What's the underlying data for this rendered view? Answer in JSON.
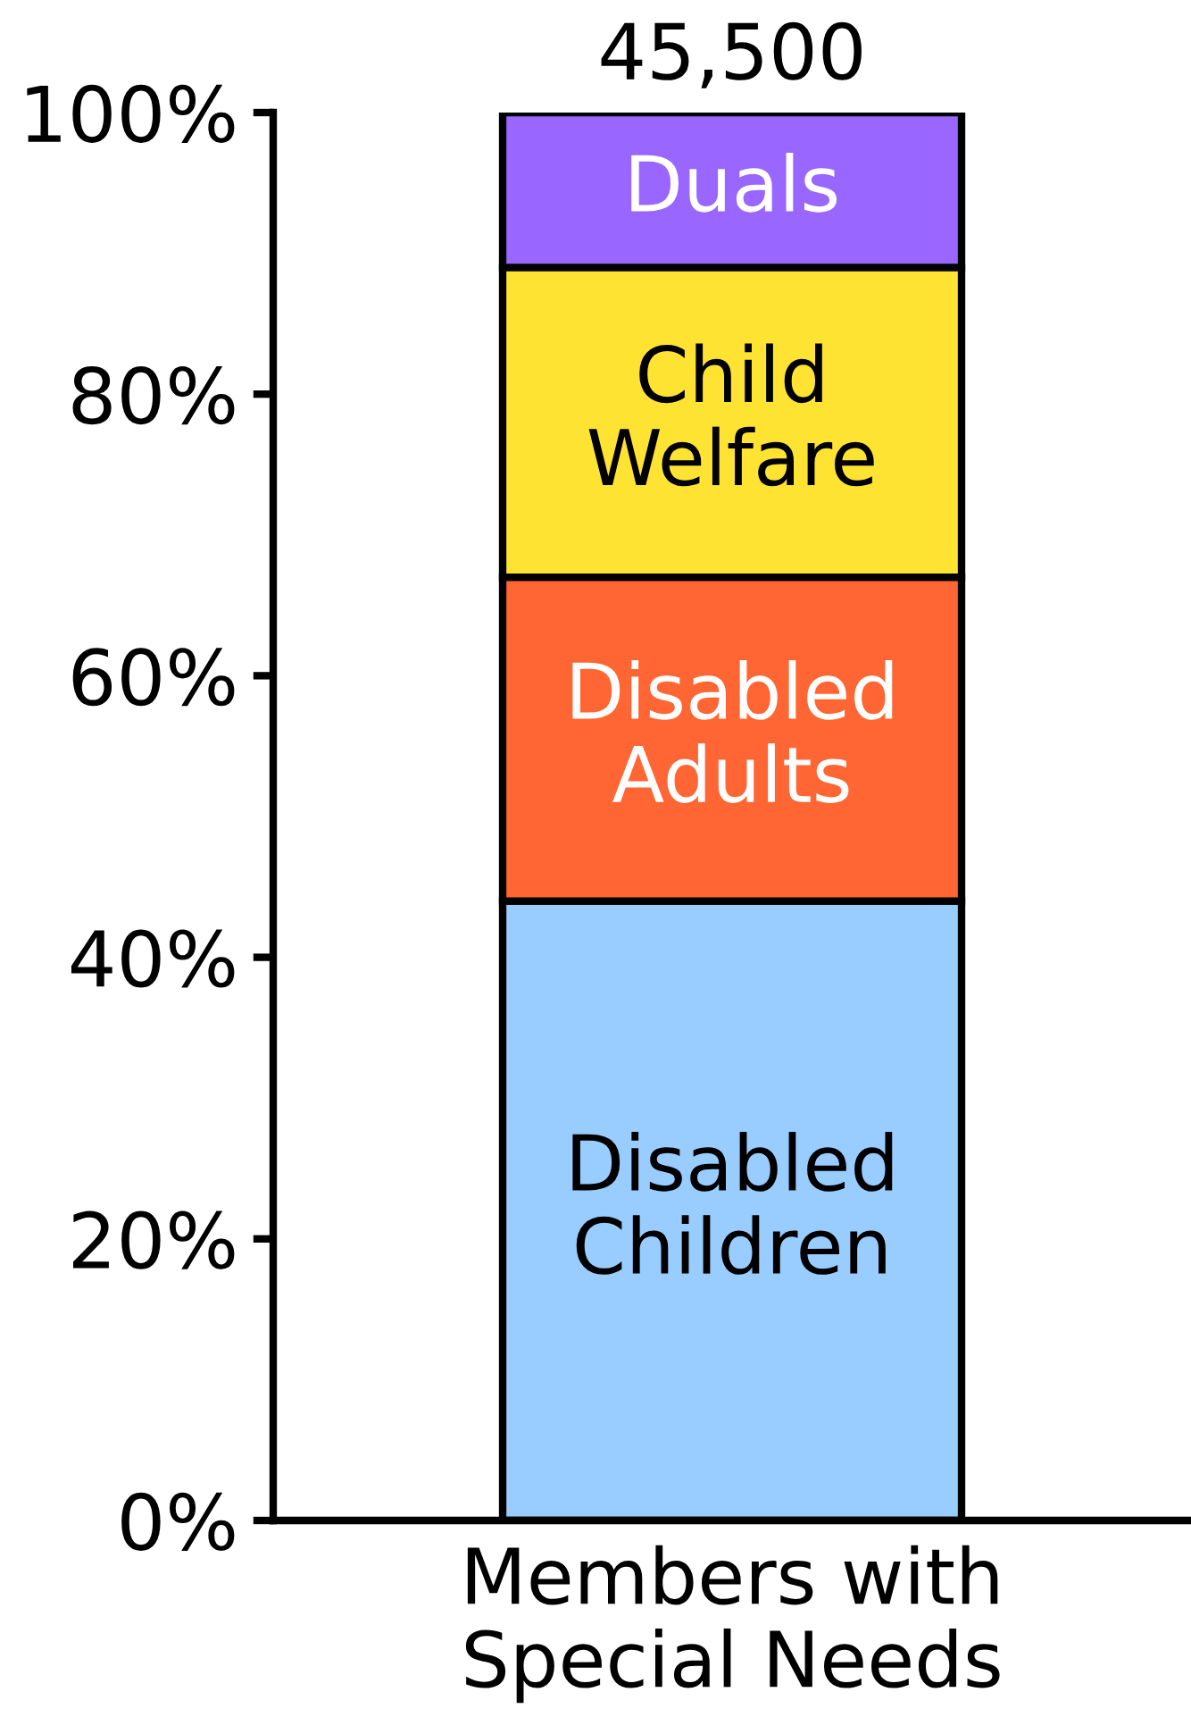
{
  "chart_data": {
    "type": "bar",
    "stacked": true,
    "categories": [
      "Members with Special Needs"
    ],
    "series": [
      {
        "name": "Disabled Children",
        "color": "#99ccff",
        "values": [
          44
        ]
      },
      {
        "name": "Disabled Adults",
        "color": "#ff6633",
        "values": [
          23
        ]
      },
      {
        "name": "Child Welfare",
        "color": "#ffe333",
        "values": [
          22
        ]
      },
      {
        "name": "Duals",
        "color": "#9966ff",
        "values": [
          11
        ]
      }
    ],
    "ylim": [
      0,
      100
    ],
    "yticks": [
      {
        "value": 0,
        "label": "0%"
      },
      {
        "value": 20,
        "label": "20%"
      },
      {
        "value": 40,
        "label": "40%"
      },
      {
        "value": 60,
        "label": "60%"
      },
      {
        "value": 80,
        "label": "80%"
      },
      {
        "value": 100,
        "label": "100%"
      }
    ],
    "annotations": [
      {
        "text": "45,500",
        "x": "Members with Special Needs",
        "y": 100
      }
    ]
  }
}
